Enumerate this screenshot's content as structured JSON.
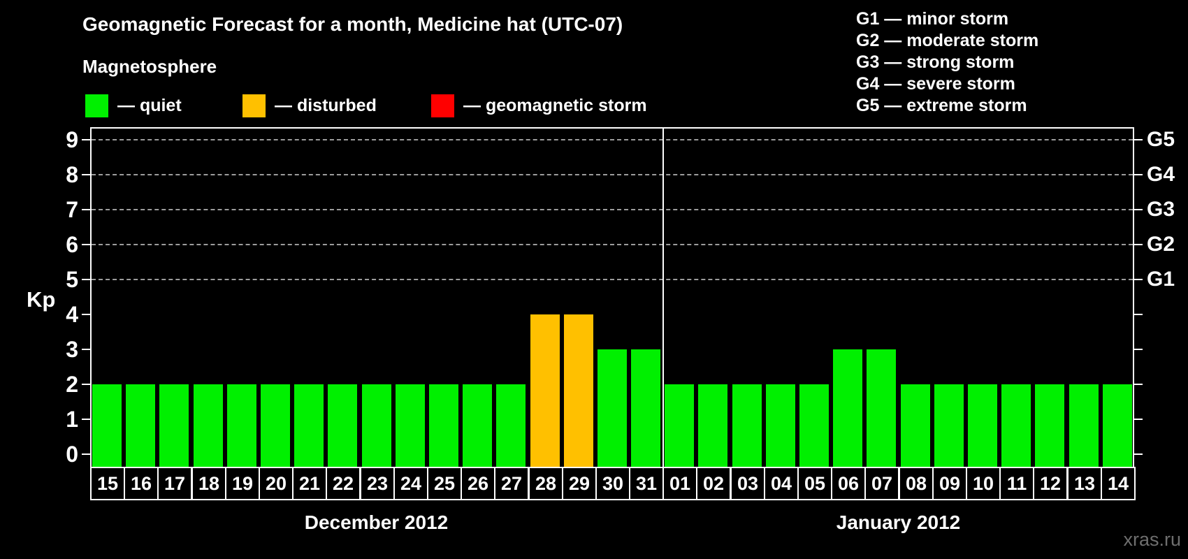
{
  "title": "Geomagnetic Forecast for a month, Medicine hat (UTC-07)",
  "watermark": "xras.ru",
  "magnetosphere": {
    "heading": "Magnetosphere",
    "items": [
      {
        "name": "quiet",
        "label": "— quiet",
        "color": "#00f000"
      },
      {
        "name": "disturbed",
        "label": "— disturbed",
        "color": "#ffc000"
      },
      {
        "name": "storm",
        "label": "— geomagnetic storm",
        "color": "#ff0000"
      }
    ]
  },
  "storm_scale_legend": [
    "G1 — minor storm",
    "G2 — moderate storm",
    "G3 — strong storm",
    "G4 — severe storm",
    "G5 — extreme storm"
  ],
  "chart_data": {
    "type": "bar",
    "title": "Geomagnetic Forecast for a month, Medicine hat (UTC-07)",
    "xlabel": "",
    "ylabel": "Kp",
    "ylim": [
      0,
      9
    ],
    "yticks": [
      0,
      1,
      2,
      3,
      4,
      5,
      6,
      7,
      8,
      9
    ],
    "grid": {
      "dashed_levels": [
        5,
        6,
        7,
        8,
        9
      ]
    },
    "legend_position": "top",
    "right_axis": [
      {
        "label": "G1",
        "kp": 5
      },
      {
        "label": "G2",
        "kp": 6
      },
      {
        "label": "G3",
        "kp": 7
      },
      {
        "label": "G4",
        "kp": 8
      },
      {
        "label": "G5",
        "kp": 9
      }
    ],
    "months": [
      {
        "label": "December 2012",
        "days": [
          "15",
          "16",
          "17",
          "18",
          "19",
          "20",
          "21",
          "22",
          "23",
          "24",
          "25",
          "26",
          "27",
          "28",
          "29",
          "30",
          "31"
        ],
        "values": [
          2,
          2,
          2,
          2,
          2,
          2,
          2,
          2,
          2,
          2,
          2,
          2,
          2,
          4,
          4,
          3,
          3
        ],
        "statuses": [
          "quiet",
          "quiet",
          "quiet",
          "quiet",
          "quiet",
          "quiet",
          "quiet",
          "quiet",
          "quiet",
          "quiet",
          "quiet",
          "quiet",
          "quiet",
          "disturbed",
          "disturbed",
          "quiet",
          "quiet"
        ]
      },
      {
        "label": "January 2012",
        "days": [
          "01",
          "02",
          "03",
          "04",
          "05",
          "06",
          "07",
          "08",
          "09",
          "10",
          "11",
          "12",
          "13",
          "14"
        ],
        "values": [
          2,
          2,
          2,
          2,
          2,
          3,
          3,
          2,
          2,
          2,
          2,
          2,
          2,
          2
        ],
        "statuses": [
          "quiet",
          "quiet",
          "quiet",
          "quiet",
          "quiet",
          "quiet",
          "quiet",
          "quiet",
          "quiet",
          "quiet",
          "quiet",
          "quiet",
          "quiet",
          "quiet"
        ]
      }
    ]
  }
}
